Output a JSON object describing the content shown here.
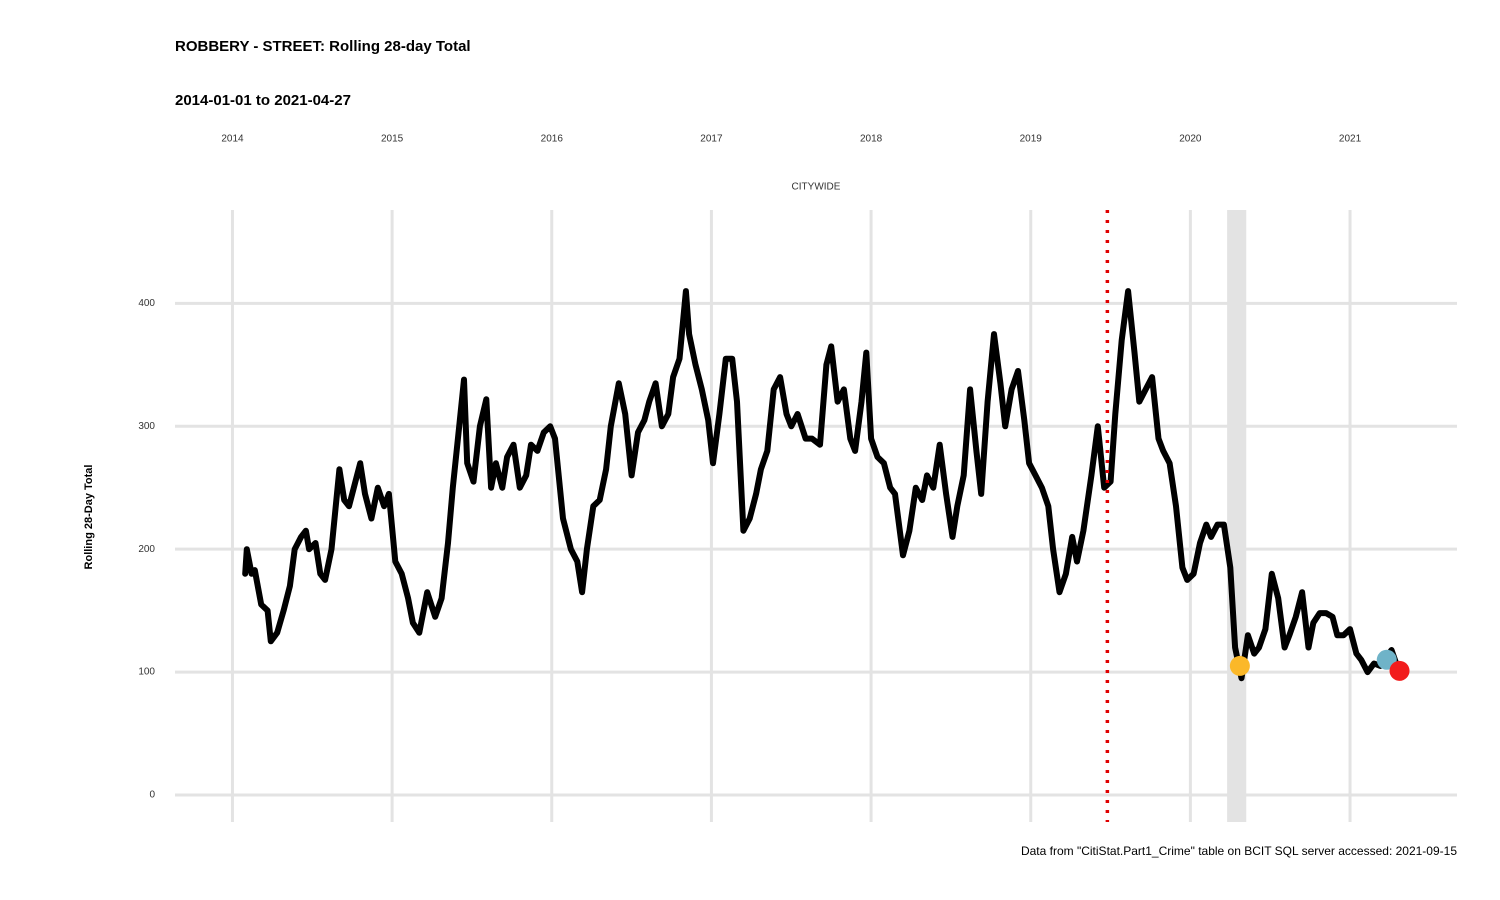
{
  "chart_data": {
    "type": "line",
    "title": "ROBBERY - STREET: Rolling 28-day Total",
    "subtitle": "2014-01-01 to 2021-04-27",
    "facet_label": "CITYWIDE",
    "y_label": "Rolling 28-Day Total",
    "caption": "Data from \"CitiStat.Part1_Crime\" table on BCIT SQL server accessed: 2021-09-15",
    "x": [
      2014.08,
      2014.09,
      2014.12,
      2014.14,
      2014.18,
      2014.22,
      2014.24,
      2014.28,
      2014.32,
      2014.36,
      2014.39,
      2014.43,
      2014.46,
      2014.48,
      2014.52,
      2014.55,
      2014.58,
      2014.62,
      2014.67,
      2014.7,
      2014.73,
      2014.77,
      2014.8,
      2014.83,
      2014.87,
      2014.91,
      2014.95,
      2014.98,
      2015.02,
      2015.06,
      2015.1,
      2015.13,
      2015.17,
      2015.22,
      2015.27,
      2015.31,
      2015.35,
      2015.38,
      2015.42,
      2015.45,
      2015.47,
      2015.51,
      2015.55,
      2015.59,
      2015.62,
      2015.65,
      2015.69,
      2015.72,
      2015.76,
      2015.8,
      2015.84,
      2015.87,
      2015.91,
      2015.95,
      2015.99,
      2016.02,
      2016.07,
      2016.12,
      2016.16,
      2016.19,
      2016.22,
      2016.26,
      2016.3,
      2016.34,
      2016.37,
      2016.42,
      2016.46,
      2016.5,
      2016.54,
      2016.58,
      2016.61,
      2016.65,
      2016.69,
      2016.73,
      2016.76,
      2016.8,
      2016.84,
      2016.86,
      2016.9,
      2016.94,
      2016.98,
      2017.01,
      2017.05,
      2017.09,
      2017.13,
      2017.16,
      2017.2,
      2017.24,
      2017.28,
      2017.31,
      2017.35,
      2017.39,
      2017.43,
      2017.47,
      2017.5,
      2017.54,
      2017.59,
      2017.63,
      2017.68,
      2017.72,
      2017.75,
      2017.79,
      2017.83,
      2017.87,
      2017.9,
      2017.94,
      2017.97,
      2018.0,
      2018.04,
      2018.08,
      2018.12,
      2018.15,
      2018.2,
      2018.24,
      2018.28,
      2018.32,
      2018.35,
      2018.39,
      2018.43,
      2018.47,
      2018.51,
      2018.54,
      2018.58,
      2018.62,
      2018.66,
      2018.69,
      2018.73,
      2018.77,
      2018.81,
      2018.84,
      2018.88,
      2018.92,
      2018.96,
      2018.99,
      2019.03,
      2019.07,
      2019.11,
      2019.14,
      2019.18,
      2019.22,
      2019.26,
      2019.29,
      2019.33,
      2019.38,
      2019.42,
      2019.46,
      2019.5,
      2019.53,
      2019.57,
      2019.61,
      2019.65,
      2019.68,
      2019.72,
      2019.76,
      2019.8,
      2019.83,
      2019.87,
      2019.91,
      2019.95,
      2019.98,
      2020.02,
      2020.06,
      2020.1,
      2020.13,
      2020.17,
      2020.21,
      2020.25,
      2020.28,
      2020.32,
      2020.36,
      2020.4,
      2020.43,
      2020.47,
      2020.51,
      2020.55,
      2020.59,
      2020.62,
      2020.66,
      2020.7,
      2020.74,
      2020.77,
      2020.81,
      2020.85,
      2020.89,
      2020.92,
      2020.96,
      2021.0,
      2021.04,
      2021.07,
      2021.11,
      2021.15,
      2021.19,
      2021.22,
      2021.26,
      2021.3
    ],
    "series": [
      {
        "color": "#000000",
        "values": [
          180,
          200,
          180,
          183,
          155,
          150,
          125,
          132,
          150,
          170,
          200,
          210,
          215,
          200,
          205,
          180,
          175,
          200,
          265,
          240,
          235,
          255,
          270,
          245,
          225,
          250,
          235,
          245,
          190,
          180,
          160,
          140,
          132,
          165,
          145,
          160,
          205,
          250,
          300,
          338,
          270,
          255,
          300,
          322,
          250,
          270,
          250,
          275,
          285,
          250,
          260,
          285,
          280,
          295,
          300,
          290,
          225,
          200,
          190,
          165,
          200,
          235,
          240,
          265,
          300,
          335,
          310,
          260,
          295,
          305,
          320,
          335,
          300,
          310,
          340,
          355,
          410,
          375,
          350,
          330,
          305,
          270,
          310,
          355,
          355,
          320,
          215,
          225,
          245,
          265,
          280,
          330,
          340,
          310,
          300,
          310,
          290,
          290,
          285,
          350,
          365,
          320,
          330,
          290,
          280,
          320,
          360,
          290,
          275,
          270,
          250,
          245,
          195,
          215,
          250,
          240,
          260,
          250,
          285,
          245,
          210,
          235,
          260,
          330,
          280,
          245,
          320,
          375,
          335,
          300,
          330,
          345,
          305,
          270,
          260,
          250,
          235,
          200,
          165,
          180,
          210,
          190,
          215,
          260,
          300,
          250,
          255,
          310,
          370,
          410,
          360,
          320,
          330,
          340,
          290,
          280,
          270,
          235,
          185,
          175,
          180,
          205,
          220,
          210,
          220,
          220,
          185,
          120,
          95,
          130,
          115,
          120,
          135,
          180,
          160,
          120,
          130,
          145,
          165,
          120,
          140,
          148,
          148,
          145,
          130,
          130,
          135,
          115,
          110,
          100,
          107,
          105,
          110,
          118,
          103
        ]
      }
    ],
    "xlim": [
      2013.64,
      2021.67
    ],
    "xticks": [
      2014,
      2015,
      2016,
      2017,
      2018,
      2019,
      2020,
      2021
    ],
    "ylim": [
      -22,
      476
    ],
    "yticks": [
      0,
      100,
      200,
      300,
      400
    ],
    "grid": true,
    "reference_line": {
      "x": 2019.48,
      "color": "#e00000"
    },
    "shaded_span": [
      2020.23,
      2020.35
    ],
    "highlight_points": [
      {
        "x": 2020.31,
        "y": 105,
        "color": "#fbb829"
      },
      {
        "x": 2021.23,
        "y": 110,
        "color": "#6fb3c8"
      },
      {
        "x": 2021.31,
        "y": 101,
        "color": "#f21c1c"
      }
    ]
  }
}
